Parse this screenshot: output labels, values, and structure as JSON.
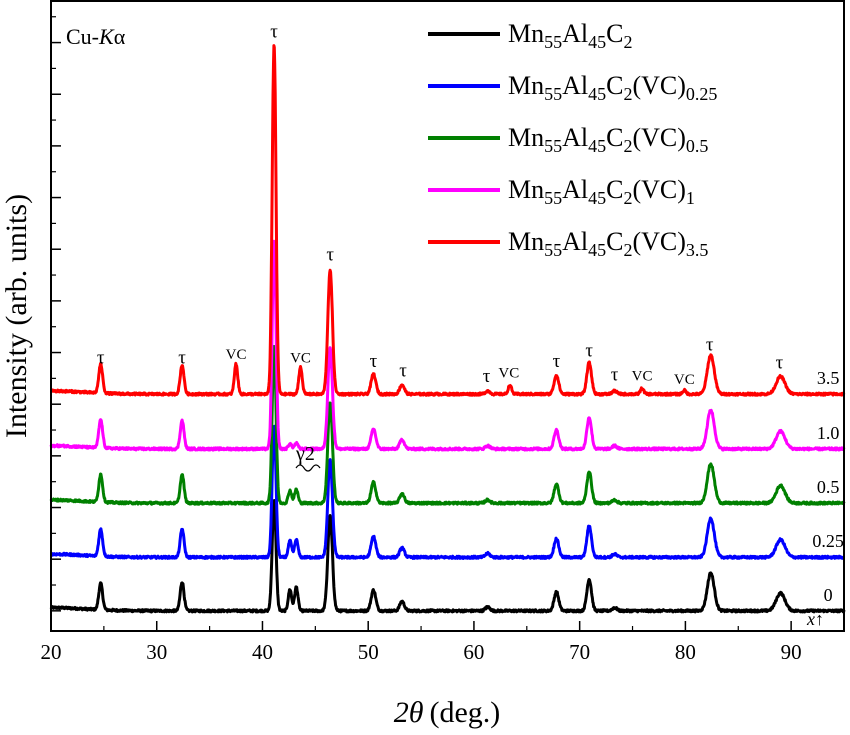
{
  "chart_data": {
    "type": "line",
    "xlabel_symbol": "2θ",
    "xlabel_unit": "(deg.)",
    "ylabel": "Intensity (arb. units)",
    "xlim": [
      20,
      95
    ],
    "ylim": [
      0,
      100
    ],
    "x_ticks": [
      20,
      30,
      40,
      50,
      60,
      70,
      80,
      90
    ],
    "radiation_prefix": "Cu-",
    "radiation_italic": "K",
    "radiation_suffix": "α",
    "series": [
      {
        "name_base": "Mn",
        "sub1": "55",
        "mid1": "Al",
        "sub2": "45",
        "mid2": "C",
        "sub3": "2",
        "suffix": "",
        "sub4": "",
        "color": "#000000",
        "baseline": 3.2,
        "x_value": "0"
      },
      {
        "name_base": "Mn",
        "sub1": "55",
        "mid1": "Al",
        "sub2": "45",
        "mid2": "C",
        "sub3": "2",
        "suffix": "(VC)",
        "sub4": "0.25",
        "color": "#0000ff",
        "baseline": 11.7,
        "x_value": "0.25"
      },
      {
        "name_base": "Mn",
        "sub1": "55",
        "mid1": "Al",
        "sub2": "45",
        "mid2": "C",
        "sub3": "2",
        "suffix": "(VC)",
        "sub4": "0.5",
        "color": "#008000",
        "baseline": 20.3,
        "x_value": "0.5"
      },
      {
        "name_base": "Mn",
        "sub1": "55",
        "mid1": "Al",
        "sub2": "45",
        "mid2": "C",
        "sub3": "2",
        "suffix": "(VC)",
        "sub4": "1",
        "color": "#ff00ff",
        "baseline": 28.9,
        "x_value": "1.0"
      },
      {
        "name_base": "Mn",
        "sub1": "55",
        "mid1": "Al",
        "sub2": "45",
        "mid2": "C",
        "sub3": "2",
        "suffix": "(VC)",
        "sub4": "3.5",
        "color": "#ff0000",
        "baseline": 37.6,
        "x_value": "3.5"
      }
    ],
    "tau_peaks": [
      {
        "x": 24.7,
        "h": [
          4.2,
          4.3,
          4.4,
          4.5,
          4.6
        ]
      },
      {
        "x": 32.4,
        "h": [
          4.6,
          4.5,
          4.5,
          4.5,
          4.6
        ]
      },
      {
        "x": 41.1,
        "h": [
          17.5,
          21.0,
          25.0,
          33.0,
          55.5
        ]
      },
      {
        "x": 46.4,
        "h": [
          15.0,
          15.5,
          16.0,
          16.0,
          19.6
        ]
      },
      {
        "x": 50.5,
        "h": [
          3.3,
          3.3,
          3.3,
          3.2,
          3.2
        ]
      },
      {
        "x": 53.2,
        "h": [
          1.5,
          1.5,
          1.5,
          1.5,
          1.5
        ]
      },
      {
        "x": 61.3,
        "h": [
          0.6,
          0.6,
          0.5,
          0.5,
          0.5
        ]
      },
      {
        "x": 67.8,
        "h": [
          3.0,
          3.0,
          3.0,
          3.0,
          3.0
        ]
      },
      {
        "x": 70.9,
        "h": [
          5.0,
          5.0,
          5.0,
          5.0,
          5.0
        ]
      },
      {
        "x": 73.3,
        "h": [
          0.5,
          0.5,
          0.5,
          0.5,
          0.5
        ]
      },
      {
        "x": 82.4,
        "h": [
          6.0,
          6.2,
          6.2,
          6.2,
          6.2
        ]
      },
      {
        "x": 89.0,
        "h": [
          2.8,
          2.8,
          2.8,
          2.8,
          2.8
        ]
      }
    ],
    "extra_peaks": [
      {
        "x": 42.6,
        "h": [
          3.4,
          2.6,
          2.0,
          0.8,
          0.0
        ]
      },
      {
        "x": 43.2,
        "h": [
          3.8,
          2.8,
          2.2,
          0.9,
          0.0
        ]
      },
      {
        "x": 37.5,
        "h": [
          0,
          0,
          0,
          0,
          4.8
        ]
      },
      {
        "x": 43.6,
        "h": [
          0,
          0,
          0,
          0,
          4.3
        ]
      },
      {
        "x": 63.4,
        "h": [
          0,
          0,
          0,
          0,
          1.4
        ]
      },
      {
        "x": 75.9,
        "h": [
          0,
          0,
          0,
          0,
          0.9
        ]
      },
      {
        "x": 79.9,
        "h": [
          0,
          0,
          0,
          0,
          0.6
        ]
      }
    ],
    "annotations": [
      {
        "text": "τ",
        "x": 24.7,
        "y": 42.5,
        "cls": "peak-label"
      },
      {
        "text": "τ",
        "x": 32.4,
        "y": 42.5,
        "cls": "peak-label"
      },
      {
        "text": "VC",
        "x": 37.5,
        "y": 43.2,
        "cls": "vc-label"
      },
      {
        "text": "τ",
        "x": 41.1,
        "y": 94.2,
        "cls": "peak-label"
      },
      {
        "text": "VC",
        "x": 43.6,
        "y": 42.6,
        "cls": "vc-label"
      },
      {
        "text": "τ",
        "x": 46.4,
        "y": 58.8,
        "cls": "peak-label"
      },
      {
        "text": "τ",
        "x": 50.5,
        "y": 41.9,
        "cls": "peak-label"
      },
      {
        "text": "τ",
        "x": 53.3,
        "y": 40.4,
        "cls": "peak-label"
      },
      {
        "text": "τ",
        "x": 61.2,
        "y": 39.5,
        "cls": "peak-label"
      },
      {
        "text": "VC",
        "x": 63.3,
        "y": 40.2,
        "cls": "vc-label"
      },
      {
        "text": "τ",
        "x": 67.8,
        "y": 41.9,
        "cls": "peak-label"
      },
      {
        "text": "τ",
        "x": 70.9,
        "y": 43.6,
        "cls": "peak-label"
      },
      {
        "text": "τ",
        "x": 73.3,
        "y": 39.8,
        "cls": "peak-label"
      },
      {
        "text": "VC",
        "x": 75.9,
        "y": 39.8,
        "cls": "vc-label"
      },
      {
        "text": "VC",
        "x": 79.9,
        "y": 39.2,
        "cls": "vc-label"
      },
      {
        "text": "τ",
        "x": 82.3,
        "y": 44.5,
        "cls": "peak-label"
      },
      {
        "text": "τ",
        "x": 88.9,
        "y": 41.7,
        "cls": "peak-label"
      }
    ],
    "gamma_label": "γ2",
    "x_axis_marker": "x↑"
  }
}
